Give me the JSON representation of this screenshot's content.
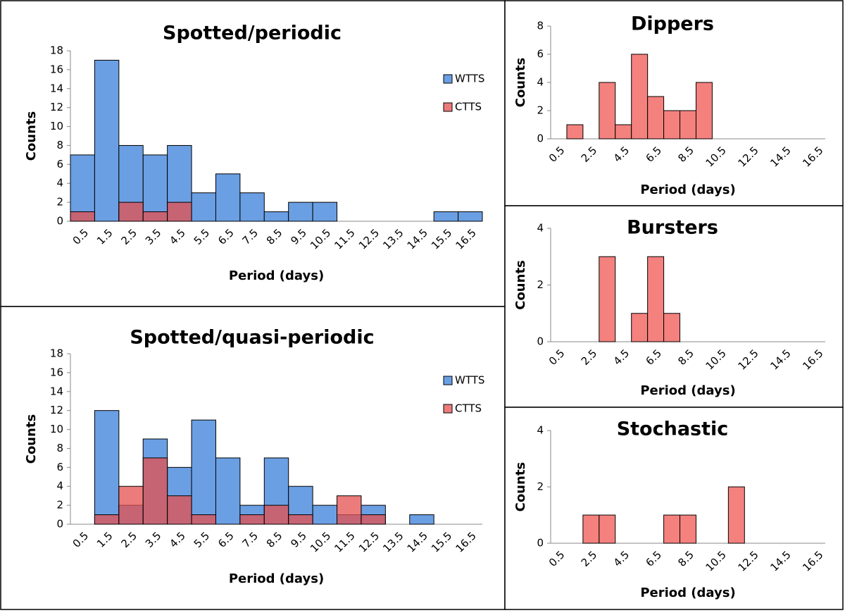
{
  "chart_data": [
    {
      "type": "bar",
      "title": "Spotted/periodic",
      "x_label": "Period (days)",
      "y_label": "Counts",
      "categories": [
        "0.5",
        "1.5",
        "2.5",
        "3.5",
        "4.5",
        "5.5",
        "6.5",
        "7.5",
        "8.5",
        "9.5",
        "10.5",
        "11.5",
        "12.5",
        "13.5",
        "14.5",
        "15.5",
        "16.5"
      ],
      "series": [
        {
          "name": "WTTS",
          "color": "#6b9fe3",
          "values": [
            7,
            17,
            8,
            7,
            8,
            3,
            5,
            3,
            1,
            2,
            2,
            0,
            0,
            0,
            0,
            1,
            1
          ]
        },
        {
          "name": "CTTS",
          "color": "#e4504f",
          "values": [
            1,
            0,
            2,
            1,
            2,
            0,
            0,
            0,
            0,
            0,
            0,
            0,
            0,
            0,
            0,
            0,
            0
          ]
        }
      ],
      "ylim": [
        0,
        18
      ],
      "yticks": [
        0,
        2,
        4,
        6,
        8,
        10,
        12,
        14,
        16,
        18
      ],
      "legend": "right"
    },
    {
      "type": "bar",
      "title": "Spotted/quasi-periodic",
      "x_label": "Period (days)",
      "y_label": "Counts",
      "categories": [
        "0.5",
        "1.5",
        "2.5",
        "3.5",
        "4.5",
        "5.5",
        "6.5",
        "7.5",
        "8.5",
        "9.5",
        "10.5",
        "11.5",
        "12.5",
        "13.5",
        "14.5",
        "15.5",
        "16.5"
      ],
      "series": [
        {
          "name": "WTTS",
          "color": "#6b9fe3",
          "values": [
            0,
            12,
            2,
            9,
            6,
            11,
            7,
            2,
            7,
            4,
            2,
            1,
            2,
            0,
            1,
            0,
            0
          ]
        },
        {
          "name": "CTTS",
          "color": "#e4504f",
          "values": [
            0,
            1,
            4,
            7,
            3,
            1,
            0,
            1,
            2,
            1,
            0,
            3,
            1,
            0,
            0,
            0,
            0
          ]
        }
      ],
      "ylim": [
        0,
        18
      ],
      "yticks": [
        0,
        2,
        4,
        6,
        8,
        10,
        12,
        14,
        16,
        18
      ],
      "legend": "right"
    },
    {
      "type": "bar",
      "title": "Dippers",
      "x_label": "Period (days)",
      "y_label": "Counts",
      "categories": [
        "0.5",
        null,
        "2.5",
        null,
        "4.5",
        null,
        "6.5",
        null,
        "8.5",
        null,
        "10.5",
        null,
        "12.5",
        null,
        "14.5",
        null,
        "16.5"
      ],
      "values": [
        0,
        1,
        0,
        4,
        1,
        6,
        3,
        2,
        2,
        4,
        0,
        0,
        0,
        0,
        0,
        0,
        0
      ],
      "color": "#f4817e",
      "ylim": [
        0,
        8
      ],
      "yticks": [
        0,
        2,
        4,
        6,
        8
      ]
    },
    {
      "type": "bar",
      "title": "Bursters",
      "x_label": "Period (days)",
      "y_label": "Counts",
      "categories": [
        "0.5",
        null,
        "2.5",
        null,
        "4.5",
        null,
        "6.5",
        null,
        "8.5",
        null,
        "10.5",
        null,
        "12.5",
        null,
        "14.5",
        null,
        "16.5"
      ],
      "values": [
        0,
        0,
        0,
        3,
        0,
        1,
        3,
        1,
        0,
        0,
        0,
        0,
        0,
        0,
        0,
        0,
        0
      ],
      "color": "#f4817e",
      "ylim": [
        0,
        4
      ],
      "yticks": [
        0,
        2,
        4
      ]
    },
    {
      "type": "bar",
      "title": "Stochastic",
      "x_label": "Period (days)",
      "y_label": "Counts",
      "categories": [
        "0.5",
        null,
        "2.5",
        null,
        "4.5",
        null,
        "6.5",
        null,
        "8.5",
        null,
        "10.5",
        null,
        "12.5",
        null,
        "14.5",
        null,
        "16.5"
      ],
      "values": [
        0,
        0,
        1,
        1,
        0,
        0,
        0,
        1,
        1,
        0,
        0,
        2,
        0,
        0,
        0,
        0,
        0
      ],
      "color": "#f4817e",
      "ylim": [
        0,
        4
      ],
      "yticks": [
        0,
        2,
        4
      ]
    }
  ]
}
